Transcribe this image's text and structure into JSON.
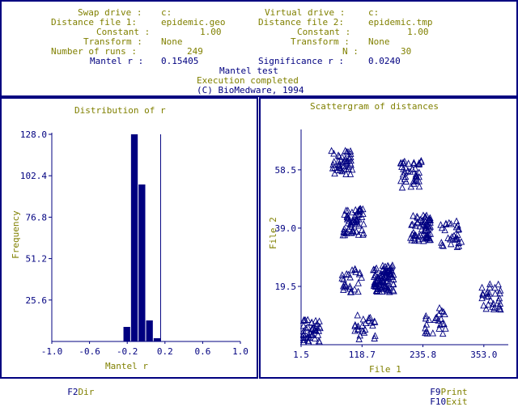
{
  "header": {
    "swap_drive_label": "Swap drive :",
    "swap_drive_value": "c:",
    "virtual_drive_label": "Virtual drive :",
    "virtual_drive_value": "c:",
    "dist1_label": "Distance file 1:",
    "dist1_value": "epidemic.geo",
    "dist2_label": "Distance file 2:",
    "dist2_value": "epidemic.tmp",
    "const1_label": "Constant :",
    "const1_value": "1.00",
    "const2_label": "Constant :",
    "const2_value": "1.00",
    "transform1_label": "Transform :",
    "transform1_value": "None",
    "transform2_label": "Transform :",
    "transform2_value": "None",
    "runs_label": "Number of runs :",
    "runs_value": "249",
    "n_label": "N :",
    "n_value": "30",
    "mantel_label": "Mantel r :",
    "mantel_value": "0.15405",
    "signif_label": "Significance r :",
    "signif_value": "0.0240",
    "test_name": "Mantel test",
    "status": "Execution completed",
    "copyright": "(C) BioMedware, 1994"
  },
  "footer": {
    "f2_key": "F2",
    "f2_label": "Dir",
    "f9_key": "F9",
    "f9_label": "Print",
    "f10_key": "F10",
    "f10_label": "Exit"
  },
  "colors": {
    "navy": "#000080",
    "olive": "#808000"
  },
  "chart_data": [
    {
      "type": "bar",
      "title": "Distribution of r",
      "xlabel": "Mantel r",
      "ylabel": "Frequency",
      "xlim": [
        -1.0,
        1.0
      ],
      "ylim": [
        0,
        128.0
      ],
      "x_ticks": [
        "-1.0",
        "-0.6",
        "-0.2",
        "0.2",
        "0.6",
        "1.0"
      ],
      "y_ticks": [
        "128.0",
        "102.4",
        "76.8",
        "51.2",
        "25.6"
      ],
      "x_tick_values": [
        -1.0,
        -0.6,
        -0.2,
        0.2,
        0.6,
        1.0
      ],
      "y_tick_values": [
        128.0,
        102.4,
        76.8,
        51.2,
        25.6
      ],
      "bin_width": 0.08,
      "bin_starts": [
        -0.24,
        -0.16,
        -0.08,
        0.0,
        0.08
      ],
      "values": [
        9,
        128,
        97,
        13,
        2
      ],
      "observed_r": 0.15405
    },
    {
      "type": "scatter",
      "title": "Scattergram of distances",
      "xlabel": "File 1",
      "ylabel": "File 2",
      "xlim": [
        1.5,
        400
      ],
      "ylim": [
        0,
        72
      ],
      "marker": "triangle",
      "x_ticks": [
        "1.5",
        "118.7",
        "235.8",
        "353.0"
      ],
      "y_ticks": [
        "58.5",
        "39.0",
        "19.5"
      ],
      "x_tick_values": [
        1.5,
        118.7,
        235.8,
        353.0
      ],
      "y_tick_values": [
        58.5,
        39.0,
        19.5
      ],
      "clusters": [
        {
          "x": 80,
          "y": 61,
          "count": 45
        },
        {
          "x": 213,
          "y": 57,
          "count": 40
        },
        {
          "x": 102,
          "y": 41,
          "count": 55
        },
        {
          "x": 232,
          "y": 39,
          "count": 65
        },
        {
          "x": 290,
          "y": 37,
          "count": 30
        },
        {
          "x": 160,
          "y": 22,
          "count": 100
        },
        {
          "x": 98,
          "y": 22,
          "count": 25
        },
        {
          "x": 20,
          "y": 4,
          "count": 45
        },
        {
          "x": 125,
          "y": 6,
          "count": 25
        },
        {
          "x": 260,
          "y": 8,
          "count": 25
        },
        {
          "x": 368,
          "y": 16,
          "count": 30
        }
      ]
    }
  ]
}
